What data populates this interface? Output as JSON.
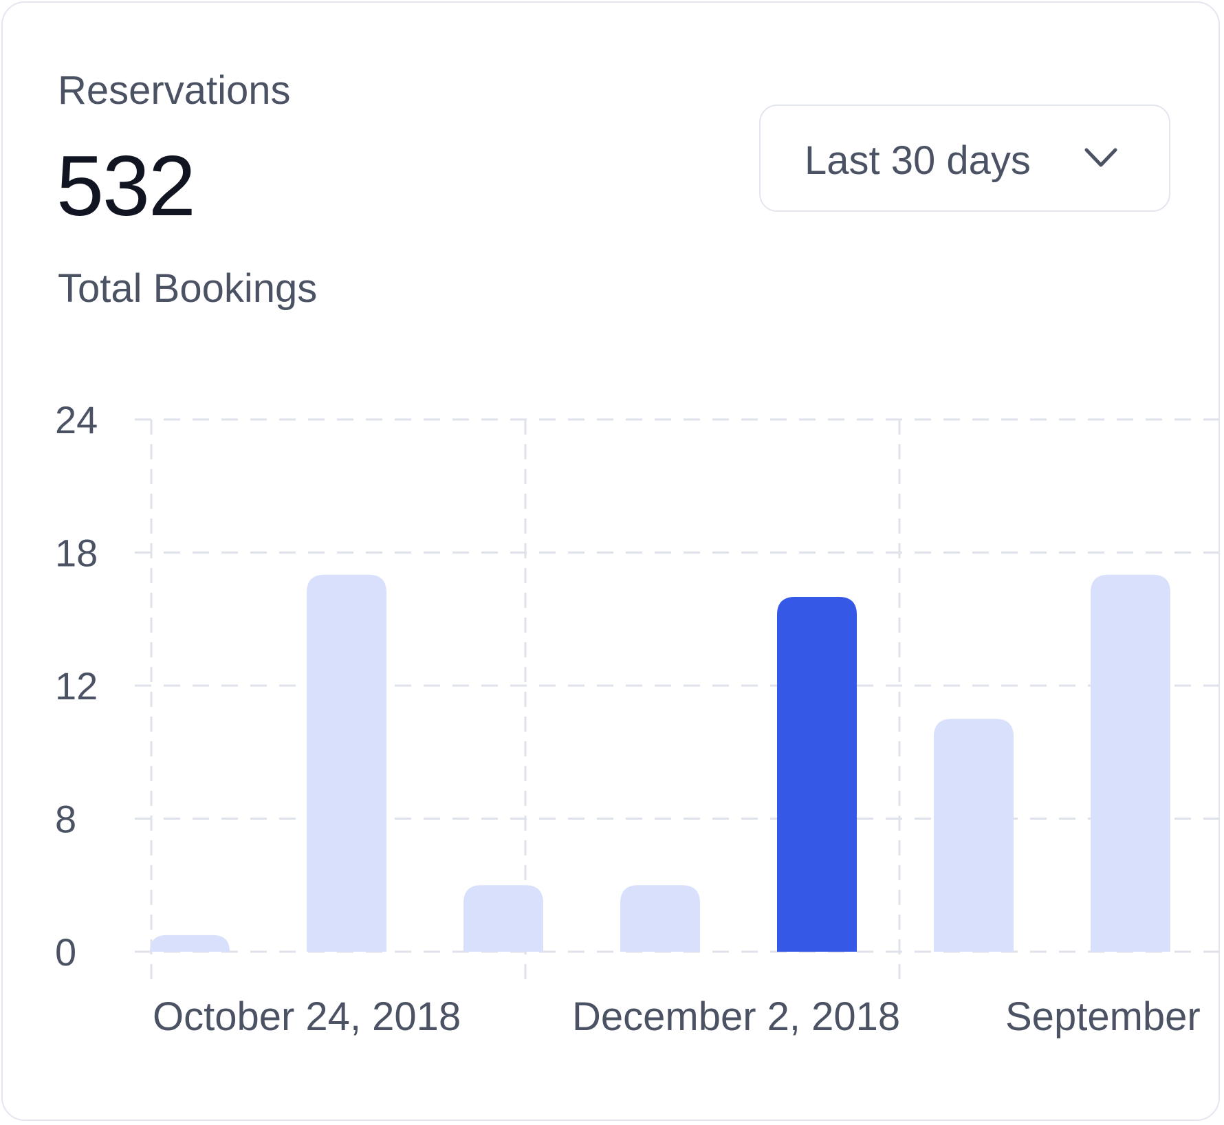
{
  "header": {
    "title": "Reservations",
    "total": "532",
    "subtitle": "Total Bookings"
  },
  "period": {
    "label": "Last 30 days"
  },
  "icons": {
    "dropdown": "chevron-down-icon"
  },
  "colors": {
    "bar": "#d8e0fb",
    "bar_active": "#3558e6",
    "grid": "#dfe2ea",
    "text": "#4b5263"
  },
  "chart_data": {
    "type": "bar",
    "y_ticks": [
      0,
      8,
      12,
      18,
      24
    ],
    "x_labels": [
      "October 24, 2018",
      "December 2, 2018",
      "September"
    ],
    "values": [
      1,
      17,
      4,
      4,
      16,
      11,
      17
    ],
    "active_index": 4,
    "grid": true
  }
}
